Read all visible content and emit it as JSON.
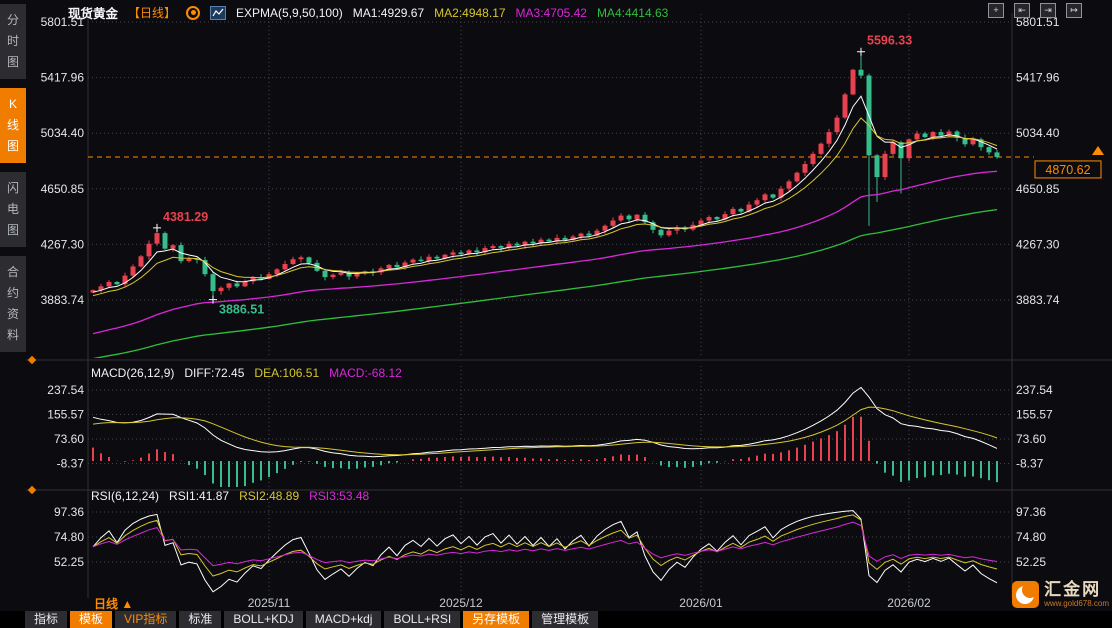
{
  "header": {
    "symbol": "现货黄金",
    "period": "【日线】",
    "expma": "EXPMA(5,9,50,100)",
    "ma1": "MA1:4929.67",
    "ma2": "MA2:4948.17",
    "ma3": "MA3:4705.42",
    "ma4": "MA4:4414.63"
  },
  "macd_header": {
    "t": "MACD(26,12,9)",
    "diff": "DIFF:72.45",
    "dea": "DEA:106.51",
    "macd": "MACD:-68.12"
  },
  "rsi_header": {
    "t": "RSI(6,12,24)",
    "r1": "RSI1:41.87",
    "r2": "RSI2:48.89",
    "r3": "RSI3:53.48"
  },
  "sidebar": {
    "items": [
      {
        "id": "time-share-chart",
        "label": "分时图",
        "active": false
      },
      {
        "id": "kline-chart",
        "label": "K线图",
        "active": true
      },
      {
        "id": "flash-chart",
        "label": "闪电图",
        "active": false
      },
      {
        "id": "contract-info",
        "label": "合约资料",
        "active": false
      }
    ]
  },
  "toolbar_icons": [
    {
      "id": "crosshair",
      "glyph": "+"
    },
    {
      "id": "pan-left",
      "glyph": "⇤"
    },
    {
      "id": "pan-right",
      "glyph": "⇥"
    },
    {
      "id": "jump-latest",
      "glyph": "↦"
    }
  ],
  "period": {
    "label": "日线",
    "arrow": "▲"
  },
  "bottom_bar": {
    "tabs": [
      {
        "id": "indicators",
        "label": "指标",
        "state": "normal"
      },
      {
        "id": "templates",
        "label": "模板",
        "state": "selected"
      },
      {
        "id": "vip-indicators",
        "label": "VIP指标",
        "state": "vip"
      },
      {
        "id": "standard",
        "label": "标准",
        "state": "normal"
      },
      {
        "id": "boll-kdj",
        "label": "BOLL+KDJ",
        "state": "normal"
      },
      {
        "id": "macd-kdj",
        "label": "MACD+kdj",
        "state": "normal"
      },
      {
        "id": "boll-rsi",
        "label": "BOLL+RSI",
        "state": "normal"
      },
      {
        "id": "save-template",
        "label": "另存模板",
        "state": "selected"
      },
      {
        "id": "manage-templates",
        "label": "管理模板",
        "state": "normal"
      }
    ]
  },
  "logo": {
    "name": "汇金网",
    "url": "www.gold678.com"
  },
  "colors": {
    "up": "#e8414f",
    "down": "#36bd8b",
    "orange": "#ff8b00",
    "white_line": "#ffffff",
    "yellow_line": "#d6c62f",
    "magenta_line": "#d928d9",
    "green_line": "#2fbe3c",
    "axis_text": "#e4e6ea",
    "grid": "#43434c",
    "xlabel": "#c8cbd0"
  },
  "chart_data": {
    "type": "candlestick",
    "title": "现货黄金 日线",
    "price_axis": {
      "ticks": [
        5801.51,
        5417.96,
        5034.4,
        4650.85,
        4267.3,
        3883.74
      ],
      "range": [
        3883.74,
        5801.51
      ]
    },
    "current_price": "4870.62",
    "annotations": [
      {
        "label": "4381.29",
        "index": 8,
        "price": 4381.29,
        "type": "high",
        "color": "up"
      },
      {
        "label": "3886.51",
        "index": 15,
        "price": 3886.51,
        "type": "low",
        "color": "down"
      },
      {
        "label": "5596.33",
        "index": 96,
        "price": 5596.33,
        "type": "high",
        "color": "up"
      }
    ],
    "x_labels": [
      {
        "label": "2025/11",
        "index": 22
      },
      {
        "label": "2025/12",
        "index": 46
      },
      {
        "label": "2026/01",
        "index": 76
      },
      {
        "label": "2026/02",
        "index": 102
      }
    ],
    "first_open": 3935,
    "closes": [
      3952,
      3978,
      4008,
      3992,
      4052,
      4115,
      4185,
      4272,
      4345,
      4238,
      4262,
      4152,
      4168,
      4160,
      4062,
      3945,
      3968,
      3998,
      3978,
      4012,
      4042,
      4030,
      4062,
      4095,
      4132,
      4165,
      4178,
      4140,
      4085,
      4042,
      4058,
      4072,
      4046,
      4066,
      4082,
      4074,
      4102,
      4126,
      4110,
      4142,
      4162,
      4152,
      4182,
      4170,
      4196,
      4212,
      4200,
      4226,
      4214,
      4242,
      4256,
      4244,
      4272,
      4260,
      4286,
      4274,
      4300,
      4288,
      4312,
      4298,
      4322,
      4342,
      4328,
      4362,
      4396,
      4432,
      4466,
      4440,
      4472,
      4420,
      4368,
      4330,
      4362,
      4386,
      4370,
      4402,
      4432,
      4456,
      4440,
      4476,
      4512,
      4494,
      4542,
      4572,
      4612,
      4590,
      4652,
      4702,
      4762,
      4822,
      4892,
      4962,
      5042,
      5142,
      5302,
      5472,
      5432,
      4882,
      4732,
      4892,
      4972,
      4862,
      4992,
      5032,
      5008,
      5042,
      5018,
      5046,
      5002,
      4958,
      4992,
      4938,
      4902,
      4870.62
    ],
    "overrides": {
      "8": {
        "h": 4381.29
      },
      "15": {
        "l": 3886.51
      },
      "96": {
        "h": 5596.33
      },
      "97": {
        "l": 4395
      },
      "98": {
        "l": 4560
      },
      "101": {
        "l": 4618
      }
    },
    "expma": {
      "periods": [
        5,
        9,
        50,
        100
      ],
      "seeds": [
        3930,
        3905,
        3640,
        3470
      ],
      "colors": [
        "#ffffff",
        "#d6c62f",
        "#d928d9",
        "#2fbe3c"
      ]
    },
    "macd": {
      "ticks": [
        237.54,
        155.57,
        73.6,
        -8.37
      ],
      "seeds": {
        "ema12": 3920,
        "ema26": 3765,
        "dea": 118
      }
    },
    "rsi": {
      "ticks": [
        97.36,
        74.8,
        52.25
      ],
      "periods": [
        6,
        12,
        24
      ],
      "seeds": {
        "gain": 12,
        "loss": 6
      },
      "colors": [
        "#ffffff",
        "#d6c62f",
        "#d928d9"
      ]
    }
  }
}
